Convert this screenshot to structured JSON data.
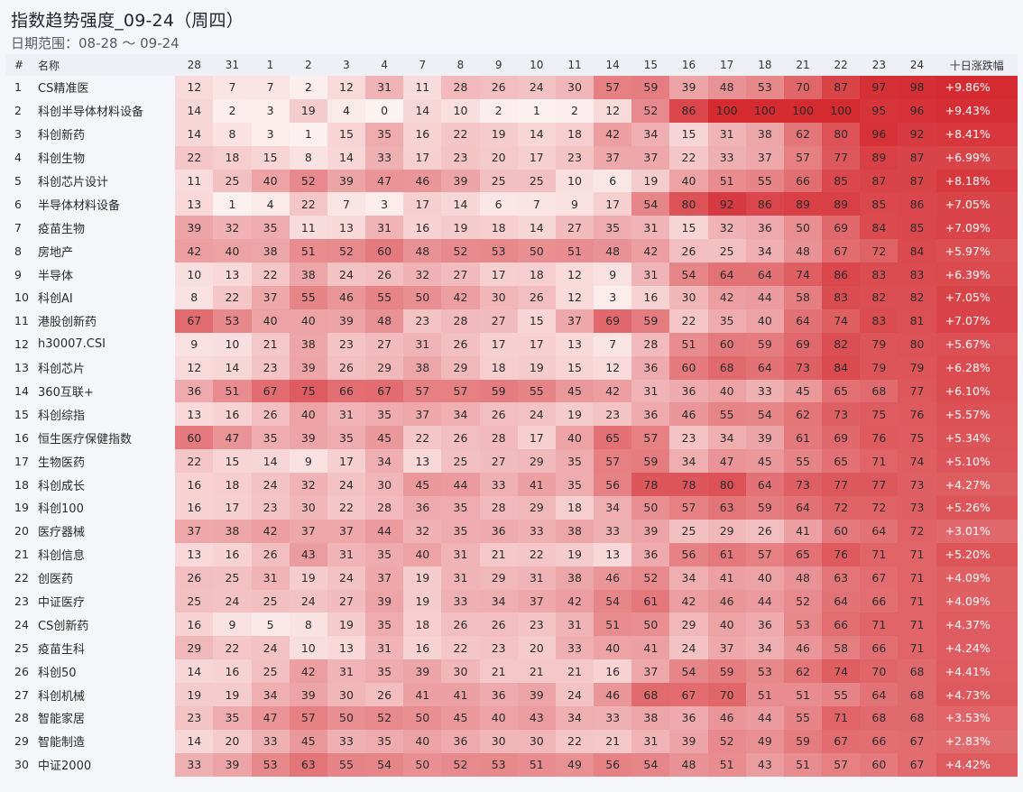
{
  "header": {
    "title": "指数趋势强度_09-24（周四）",
    "subtitle": "日期范围：08-28 ～ 09-24"
  },
  "table": {
    "idx_label": "#",
    "name_label": "名称",
    "change_label": "十日涨跌幅"
  },
  "colors": {
    "heat_min": "#fdf2f2",
    "heat_max": "#d42a30",
    "background": "#f5f6fa",
    "header_bg": "#eef0f6"
  },
  "chart_data": {
    "type": "heatmap",
    "title": "指数趋势强度_09-24（周四）",
    "subtitle": "日期范围：08-28 ～ 09-24",
    "columns": [
      "28",
      "31",
      "1",
      "2",
      "3",
      "4",
      "7",
      "8",
      "9",
      "10",
      "11",
      "14",
      "15",
      "16",
      "17",
      "18",
      "21",
      "22",
      "23",
      "24"
    ],
    "value_range": [
      0,
      100
    ],
    "rows": [
      {
        "idx": "1",
        "name": "CS精准医",
        "values": [
          12,
          7,
          7,
          2,
          12,
          31,
          11,
          28,
          26,
          24,
          30,
          57,
          59,
          39,
          48,
          53,
          70,
          87,
          97,
          98
        ],
        "change": "+9.86%"
      },
      {
        "idx": "2",
        "name": "科创半导体材料设备",
        "values": [
          14,
          2,
          3,
          19,
          4,
          0,
          14,
          10,
          2,
          1,
          2,
          12,
          52,
          86,
          100,
          100,
          100,
          100,
          95,
          96
        ],
        "change": "+9.43%"
      },
      {
        "idx": "3",
        "name": "科创新药",
        "values": [
          14,
          8,
          3,
          1,
          15,
          35,
          16,
          22,
          19,
          14,
          18,
          42,
          34,
          15,
          31,
          38,
          62,
          80,
          96,
          92
        ],
        "change": "+8.41%"
      },
      {
        "idx": "4",
        "name": "科创生物",
        "values": [
          22,
          18,
          15,
          8,
          14,
          33,
          17,
          23,
          20,
          17,
          23,
          37,
          37,
          22,
          33,
          37,
          57,
          77,
          89,
          87
        ],
        "change": "+6.99%"
      },
      {
        "idx": "5",
        "name": "科创芯片设计",
        "values": [
          11,
          25,
          40,
          52,
          39,
          47,
          46,
          39,
          25,
          25,
          10,
          6,
          19,
          40,
          51,
          55,
          66,
          85,
          87,
          87
        ],
        "change": "+8.18%"
      },
      {
        "idx": "6",
        "name": "半导体材料设备",
        "values": [
          13,
          1,
          4,
          22,
          7,
          3,
          17,
          14,
          6,
          7,
          9,
          17,
          54,
          80,
          92,
          86,
          89,
          89,
          85,
          86
        ],
        "change": "+7.05%"
      },
      {
        "idx": "7",
        "name": "疫苗生物",
        "values": [
          39,
          32,
          35,
          11,
          13,
          31,
          16,
          19,
          18,
          14,
          27,
          35,
          31,
          15,
          32,
          36,
          50,
          69,
          84,
          85
        ],
        "change": "+7.09%"
      },
      {
        "idx": "8",
        "name": "房地产",
        "values": [
          42,
          40,
          38,
          51,
          52,
          60,
          48,
          52,
          53,
          50,
          51,
          48,
          42,
          26,
          25,
          34,
          48,
          67,
          72,
          84
        ],
        "change": "+5.97%"
      },
      {
        "idx": "9",
        "name": "半导体",
        "values": [
          10,
          13,
          22,
          38,
          24,
          26,
          32,
          27,
          17,
          18,
          12,
          9,
          31,
          54,
          64,
          64,
          74,
          86,
          83,
          83
        ],
        "change": "+6.39%"
      },
      {
        "idx": "10",
        "name": "科创AI",
        "values": [
          8,
          22,
          37,
          55,
          46,
          55,
          50,
          42,
          30,
          26,
          12,
          3,
          16,
          30,
          42,
          44,
          58,
          83,
          82,
          82
        ],
        "change": "+7.05%"
      },
      {
        "idx": "11",
        "name": "港股创新药",
        "values": [
          67,
          53,
          40,
          40,
          39,
          48,
          23,
          28,
          27,
          15,
          37,
          69,
          59,
          22,
          35,
          40,
          64,
          74,
          83,
          81
        ],
        "change": "+7.07%"
      },
      {
        "idx": "12",
        "name": "h30007.CSI",
        "values": [
          9,
          10,
          21,
          38,
          23,
          27,
          31,
          26,
          17,
          17,
          13,
          7,
          28,
          51,
          60,
          59,
          69,
          82,
          79,
          80
        ],
        "change": "+5.67%"
      },
      {
        "idx": "13",
        "name": "科创芯片",
        "values": [
          12,
          14,
          23,
          39,
          26,
          29,
          38,
          29,
          18,
          19,
          15,
          12,
          36,
          60,
          68,
          64,
          73,
          84,
          79,
          79
        ],
        "change": "+6.28%"
      },
      {
        "idx": "14",
        "name": "360互联+",
        "values": [
          36,
          51,
          67,
          75,
          66,
          67,
          57,
          57,
          59,
          55,
          45,
          42,
          31,
          36,
          40,
          33,
          45,
          65,
          68,
          77
        ],
        "change": "+6.10%"
      },
      {
        "idx": "15",
        "name": "科创综指",
        "values": [
          13,
          16,
          26,
          40,
          31,
          35,
          37,
          34,
          26,
          24,
          19,
          23,
          36,
          46,
          55,
          54,
          62,
          73,
          75,
          76
        ],
        "change": "+5.57%"
      },
      {
        "idx": "16",
        "name": "恒生医疗保健指数",
        "values": [
          60,
          47,
          35,
          39,
          35,
          45,
          22,
          26,
          28,
          17,
          40,
          65,
          57,
          23,
          34,
          39,
          61,
          69,
          76,
          75
        ],
        "change": "+5.34%"
      },
      {
        "idx": "17",
        "name": "生物医药",
        "values": [
          22,
          15,
          14,
          9,
          17,
          34,
          13,
          25,
          27,
          29,
          35,
          57,
          59,
          34,
          47,
          45,
          55,
          65,
          71,
          74
        ],
        "change": "+5.10%"
      },
      {
        "idx": "18",
        "name": "科创成长",
        "values": [
          16,
          18,
          24,
          32,
          24,
          30,
          45,
          44,
          33,
          41,
          35,
          56,
          78,
          78,
          80,
          64,
          73,
          77,
          77,
          73
        ],
        "change": "+4.27%"
      },
      {
        "idx": "19",
        "name": "科创100",
        "values": [
          16,
          17,
          23,
          30,
          22,
          28,
          36,
          35,
          28,
          29,
          18,
          34,
          50,
          57,
          63,
          59,
          64,
          72,
          72,
          73
        ],
        "change": "+5.26%"
      },
      {
        "idx": "20",
        "name": "医疗器械",
        "values": [
          37,
          38,
          42,
          37,
          37,
          44,
          32,
          35,
          36,
          33,
          38,
          33,
          39,
          25,
          29,
          26,
          41,
          60,
          64,
          72
        ],
        "change": "+3.01%"
      },
      {
        "idx": "21",
        "name": "科创信息",
        "values": [
          13,
          16,
          26,
          43,
          31,
          35,
          40,
          31,
          21,
          22,
          19,
          13,
          36,
          56,
          61,
          57,
          65,
          76,
          71,
          71
        ],
        "change": "+5.20%"
      },
      {
        "idx": "22",
        "name": "创医药",
        "values": [
          26,
          25,
          31,
          19,
          24,
          37,
          19,
          31,
          29,
          31,
          38,
          46,
          52,
          34,
          41,
          40,
          48,
          63,
          67,
          71
        ],
        "change": "+4.09%"
      },
      {
        "idx": "23",
        "name": "中证医疗",
        "values": [
          25,
          24,
          25,
          24,
          27,
          39,
          19,
          33,
          34,
          37,
          42,
          54,
          61,
          42,
          46,
          44,
          52,
          64,
          66,
          71
        ],
        "change": "+4.09%"
      },
      {
        "idx": "24",
        "name": "CS创新药",
        "values": [
          16,
          9,
          5,
          8,
          19,
          35,
          18,
          26,
          26,
          23,
          31,
          51,
          50,
          29,
          40,
          36,
          53,
          66,
          71,
          71
        ],
        "change": "+4.37%"
      },
      {
        "idx": "25",
        "name": "疫苗生科",
        "values": [
          29,
          22,
          24,
          10,
          13,
          31,
          16,
          22,
          23,
          20,
          33,
          40,
          41,
          24,
          37,
          34,
          46,
          58,
          66,
          71
        ],
        "change": "+4.24%"
      },
      {
        "idx": "26",
        "name": "科创50",
        "values": [
          14,
          16,
          25,
          42,
          31,
          35,
          39,
          30,
          21,
          21,
          21,
          16,
          37,
          54,
          59,
          53,
          62,
          74,
          70,
          68
        ],
        "change": "+4.41%"
      },
      {
        "idx": "27",
        "name": "科创机械",
        "values": [
          19,
          19,
          34,
          39,
          30,
          26,
          41,
          41,
          36,
          39,
          24,
          46,
          68,
          67,
          70,
          51,
          51,
          55,
          64,
          68
        ],
        "change": "+4.73%"
      },
      {
        "idx": "28",
        "name": "智能家居",
        "values": [
          23,
          35,
          47,
          57,
          50,
          52,
          50,
          45,
          40,
          43,
          34,
          33,
          38,
          36,
          46,
          44,
          55,
          71,
          68,
          68
        ],
        "change": "+3.53%"
      },
      {
        "idx": "29",
        "name": "智能制造",
        "values": [
          14,
          20,
          33,
          45,
          33,
          35,
          40,
          36,
          30,
          30,
          22,
          21,
          31,
          39,
          52,
          49,
          59,
          67,
          66,
          67
        ],
        "change": "+2.83%"
      },
      {
        "idx": "30",
        "name": "中证2000",
        "values": [
          33,
          39,
          53,
          63,
          55,
          54,
          50,
          52,
          53,
          51,
          49,
          56,
          54,
          48,
          51,
          43,
          51,
          57,
          60,
          67
        ],
        "change": "+4.42%"
      }
    ]
  }
}
